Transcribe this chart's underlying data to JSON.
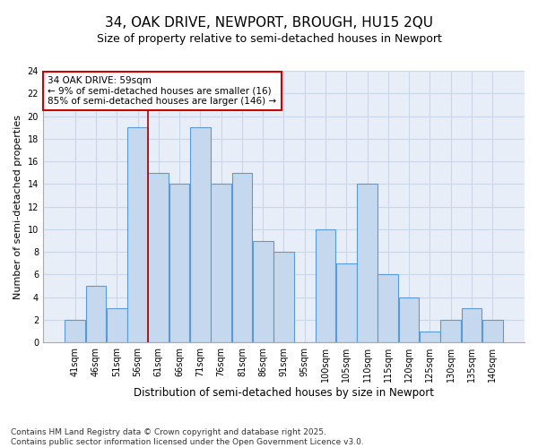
{
  "title": "34, OAK DRIVE, NEWPORT, BROUGH, HU15 2QU",
  "subtitle": "Size of property relative to semi-detached houses in Newport",
  "xlabel": "Distribution of semi-detached houses by size in Newport",
  "ylabel": "Number of semi-detached properties",
  "categories": [
    "41sqm",
    "46sqm",
    "51sqm",
    "56sqm",
    "61sqm",
    "66sqm",
    "71sqm",
    "76sqm",
    "81sqm",
    "86sqm",
    "91sqm",
    "95sqm",
    "100sqm",
    "105sqm",
    "110sqm",
    "115sqm",
    "120sqm",
    "125sqm",
    "130sqm",
    "135sqm",
    "140sqm"
  ],
  "values": [
    2,
    5,
    3,
    19,
    15,
    14,
    19,
    14,
    15,
    9,
    8,
    0,
    10,
    7,
    14,
    6,
    4,
    1,
    2,
    3,
    2
  ],
  "bar_color": "#c5d8ed",
  "bar_edge_color": "#5b9bd5",
  "vline_color": "#aa0000",
  "annotation_text": "34 OAK DRIVE: 59sqm\n← 9% of semi-detached houses are smaller (16)\n85% of semi-detached houses are larger (146) →",
  "annotation_box_edge_color": "#cc0000",
  "annotation_fontsize": 7.5,
  "ylim": [
    0,
    24
  ],
  "yticks": [
    0,
    2,
    4,
    6,
    8,
    10,
    12,
    14,
    16,
    18,
    20,
    22,
    24
  ],
  "grid_color": "#c8d8e8",
  "background_color": "#e8eef8",
  "footer_text": "Contains HM Land Registry data © Crown copyright and database right 2025.\nContains public sector information licensed under the Open Government Licence v3.0.",
  "title_fontsize": 11,
  "subtitle_fontsize": 9,
  "xlabel_fontsize": 8.5,
  "ylabel_fontsize": 8,
  "tick_fontsize": 7
}
